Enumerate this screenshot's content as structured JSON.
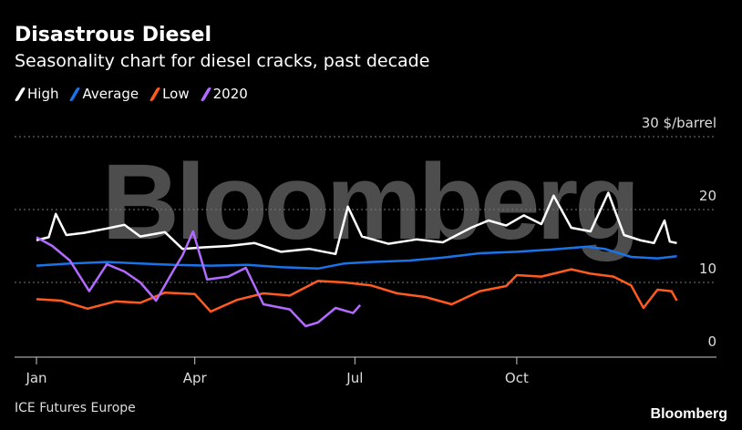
{
  "header": {
    "title": "Disastrous Diesel",
    "subtitle": "Seasonality chart for diesel cracks, past decade"
  },
  "footer": {
    "source": "ICE Futures Europe",
    "logo": "Bloomberg"
  },
  "watermark": "Bloomberg",
  "chart_data": {
    "type": "line",
    "title": "Disastrous Diesel",
    "subtitle": "Seasonality chart for diesel cracks, past decade",
    "ylabel": "$/barrel",
    "ylim": [
      0,
      30
    ],
    "yticks": [
      {
        "v": 0,
        "label": "0"
      },
      {
        "v": 10,
        "label": "10"
      },
      {
        "v": 20,
        "label": "20"
      },
      {
        "v": 30,
        "label": "30 $/barrel"
      }
    ],
    "xticks": [
      {
        "d": "01-01",
        "label": "Jan"
      },
      {
        "d": "04-01",
        "label": "Apr"
      },
      {
        "d": "07-01",
        "label": "Jul"
      },
      {
        "d": "10-01",
        "label": "Oct"
      }
    ],
    "grid": true,
    "legend_position": "top-left",
    "series": [
      {
        "name": "High",
        "color": "#ffffff",
        "points": [
          [
            "01-01",
            15.8
          ],
          [
            "01-08",
            16.2
          ],
          [
            "01-12",
            19.4
          ],
          [
            "01-18",
            16.5
          ],
          [
            "01-28",
            16.8
          ],
          [
            "02-10",
            17.4
          ],
          [
            "02-20",
            17.9
          ],
          [
            "03-01",
            16.3
          ],
          [
            "03-15",
            16.9
          ],
          [
            "03-25",
            14.6
          ],
          [
            "04-05",
            14.8
          ],
          [
            "04-20",
            15.0
          ],
          [
            "05-05",
            15.4
          ],
          [
            "05-20",
            14.2
          ],
          [
            "06-05",
            14.6
          ],
          [
            "06-20",
            13.9
          ],
          [
            "06-27",
            20.4
          ],
          [
            "07-05",
            16.3
          ],
          [
            "07-20",
            15.3
          ],
          [
            "08-05",
            15.9
          ],
          [
            "08-20",
            15.5
          ],
          [
            "09-05",
            17.5
          ],
          [
            "09-15",
            18.5
          ],
          [
            "09-25",
            17.8
          ],
          [
            "10-05",
            19.2
          ],
          [
            "10-15",
            18.0
          ],
          [
            "10-22",
            21.9
          ],
          [
            "11-01",
            17.5
          ],
          [
            "11-12",
            17.0
          ],
          [
            "11-22",
            22.3
          ],
          [
            "12-01",
            16.5
          ],
          [
            "12-10",
            15.8
          ],
          [
            "12-18",
            15.4
          ],
          [
            "12-24",
            18.5
          ],
          [
            "12-27",
            15.6
          ],
          [
            "12-31",
            15.4
          ]
        ]
      },
      {
        "name": "Average",
        "color": "#1a73e8",
        "points": [
          [
            "01-01",
            12.3
          ],
          [
            "01-20",
            12.6
          ],
          [
            "02-10",
            12.8
          ],
          [
            "03-01",
            12.6
          ],
          [
            "03-20",
            12.4
          ],
          [
            "04-10",
            12.3
          ],
          [
            "05-01",
            12.4
          ],
          [
            "05-20",
            12.1
          ],
          [
            "06-10",
            11.9
          ],
          [
            "06-25",
            12.6
          ],
          [
            "07-10",
            12.8
          ],
          [
            "08-01",
            13.0
          ],
          [
            "08-20",
            13.4
          ],
          [
            "09-10",
            14.0
          ],
          [
            "10-01",
            14.2
          ],
          [
            "10-20",
            14.5
          ],
          [
            "11-10",
            14.9
          ],
          [
            "11-20",
            14.6
          ],
          [
            "12-05",
            13.5
          ],
          [
            "12-20",
            13.3
          ],
          [
            "12-31",
            13.6
          ]
        ]
      },
      {
        "name": "Low",
        "color": "#ff5a1f",
        "points": [
          [
            "01-01",
            7.7
          ],
          [
            "01-15",
            7.5
          ],
          [
            "01-30",
            6.4
          ],
          [
            "02-15",
            7.4
          ],
          [
            "03-01",
            7.2
          ],
          [
            "03-15",
            8.6
          ],
          [
            "04-01",
            8.4
          ],
          [
            "04-10",
            6.0
          ],
          [
            "04-25",
            7.6
          ],
          [
            "05-10",
            8.5
          ],
          [
            "05-25",
            8.2
          ],
          [
            "06-10",
            10.2
          ],
          [
            "06-25",
            10.0
          ],
          [
            "07-10",
            9.6
          ],
          [
            "07-25",
            8.5
          ],
          [
            "08-10",
            8.0
          ],
          [
            "08-25",
            7.0
          ],
          [
            "09-10",
            8.8
          ],
          [
            "09-25",
            9.5
          ],
          [
            "10-01",
            11.0
          ],
          [
            "10-15",
            10.8
          ],
          [
            "11-01",
            11.8
          ],
          [
            "11-12",
            11.2
          ],
          [
            "11-25",
            10.8
          ],
          [
            "12-05",
            9.6
          ],
          [
            "12-12",
            6.5
          ],
          [
            "12-20",
            9.0
          ],
          [
            "12-28",
            8.8
          ],
          [
            "12-31",
            7.5
          ]
        ]
      },
      {
        "name": "2020",
        "color": "#b36bff",
        "points": [
          [
            "01-01",
            16.2
          ],
          [
            "01-10",
            15.0
          ],
          [
            "01-20",
            13.0
          ],
          [
            "01-31",
            8.8
          ],
          [
            "02-10",
            12.5
          ],
          [
            "02-20",
            11.5
          ],
          [
            "03-01",
            10.0
          ],
          [
            "03-10",
            7.5
          ],
          [
            "03-20",
            11.7
          ],
          [
            "03-25",
            13.7
          ],
          [
            "03-31",
            17.0
          ],
          [
            "04-08",
            10.4
          ],
          [
            "04-20",
            10.8
          ],
          [
            "04-30",
            12.0
          ],
          [
            "05-10",
            7.0
          ],
          [
            "05-25",
            6.3
          ],
          [
            "06-03",
            4.0
          ],
          [
            "06-10",
            4.5
          ],
          [
            "06-20",
            6.5
          ],
          [
            "06-30",
            5.8
          ],
          [
            "07-04",
            6.9
          ]
        ]
      }
    ]
  }
}
